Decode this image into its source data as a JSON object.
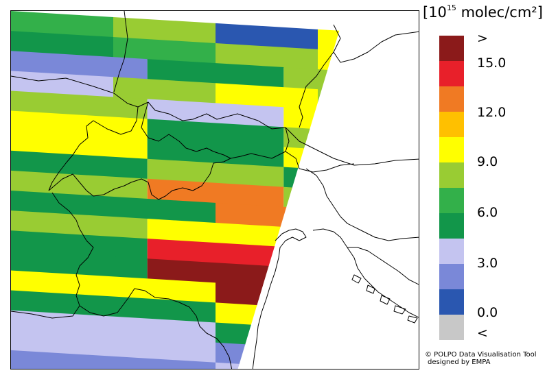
{
  "legend": {
    "title_prefix": "[10",
    "title_exponent": "15",
    "title_suffix": " molec/cm²]",
    "bins": [
      {
        "color": "#8b1a1a"
      },
      {
        "color": "#e8202a"
      },
      {
        "color": "#f07a23"
      },
      {
        "color": "#ffc000"
      },
      {
        "color": "#ffff00"
      },
      {
        "color": "#99cc33"
      },
      {
        "color": "#33b04a"
      },
      {
        "color": "#12964a"
      },
      {
        "color": "#c4c4f0"
      },
      {
        "color": "#7a88d8"
      },
      {
        "color": "#2a57b0"
      },
      {
        "color": "#c8c8c8"
      }
    ],
    "labels": [
      ">",
      "15.0",
      "12.0",
      "9.0",
      "6.0",
      "3.0",
      "0.0",
      "<"
    ]
  },
  "credit": {
    "line1": "© POLPO Data Visualisation Tool",
    "line2": "designed by EMPA"
  },
  "colors": {
    "no_data": "#ffffff",
    "border_lines": "#000000"
  },
  "map": {
    "swath_rows": [
      {
        "segments": [
          {
            "value": 7.0
          },
          {
            "value": 8.0
          },
          {
            "value": 1.0
          },
          {
            "value": 10.0
          }
        ]
      },
      {
        "segments": [
          {
            "value": 4.5
          },
          {
            "value": 7.0
          },
          {
            "value": 8.0
          },
          {
            "value": 10.0
          }
        ]
      },
      {
        "segments": [
          {
            "value": 1.5
          },
          {
            "value": 5.0
          },
          {
            "value": 8.0
          }
        ]
      },
      {
        "segments": [
          {
            "value": 3.5
          },
          {
            "value": 8.0
          },
          {
            "value": 10.0
          },
          {
            "value": 8.0
          }
        ]
      },
      {
        "segments": [
          {
            "value": 8.0
          },
          {
            "value": 3.5
          },
          {
            "value": 10.0
          }
        ]
      },
      {
        "segments": [
          {
            "value": 10.0
          },
          {
            "value": 5.0
          },
          {
            "value": 8.0
          }
        ]
      },
      {
        "segments": [
          {
            "value": 10.0
          },
          {
            "value": 5.0
          },
          {
            "value": 10.0
          }
        ]
      },
      {
        "segments": [
          {
            "value": 5.0
          },
          {
            "value": 8.0
          },
          {
            "value": 5.0
          }
        ]
      },
      {
        "segments": [
          {
            "value": 8.0
          },
          {
            "value": 12.0
          },
          {
            "value": 8.0
          }
        ]
      },
      {
        "segments": [
          {
            "value": 5.0
          },
          {
            "value": 12.0
          }
        ]
      },
      {
        "segments": [
          {
            "value": 8.0
          },
          {
            "value": 10.0
          },
          {
            "value": 12.0
          }
        ]
      },
      {
        "segments": [
          {
            "value": 5.0
          },
          {
            "value": 13.5
          },
          {
            "value": 10.0
          }
        ]
      },
      {
        "segments": [
          {
            "value": 5.0
          },
          {
            "value": 16.5
          },
          {
            "value": 13.5
          }
        ]
      },
      {
        "segments": [
          {
            "value": 10.0
          },
          {
            "value": 16.5
          }
        ]
      },
      {
        "segments": [
          {
            "value": 4.5
          },
          {
            "value": 10.0
          }
        ]
      },
      {
        "segments": [
          {
            "value": 3.5
          },
          {
            "value": 5.0
          }
        ]
      },
      {
        "segments": [
          {
            "value": 3.5
          },
          {
            "value": 2.0
          }
        ]
      },
      {
        "segments": [
          {
            "value": 2.0
          },
          {
            "value": 3.5
          }
        ]
      }
    ]
  }
}
